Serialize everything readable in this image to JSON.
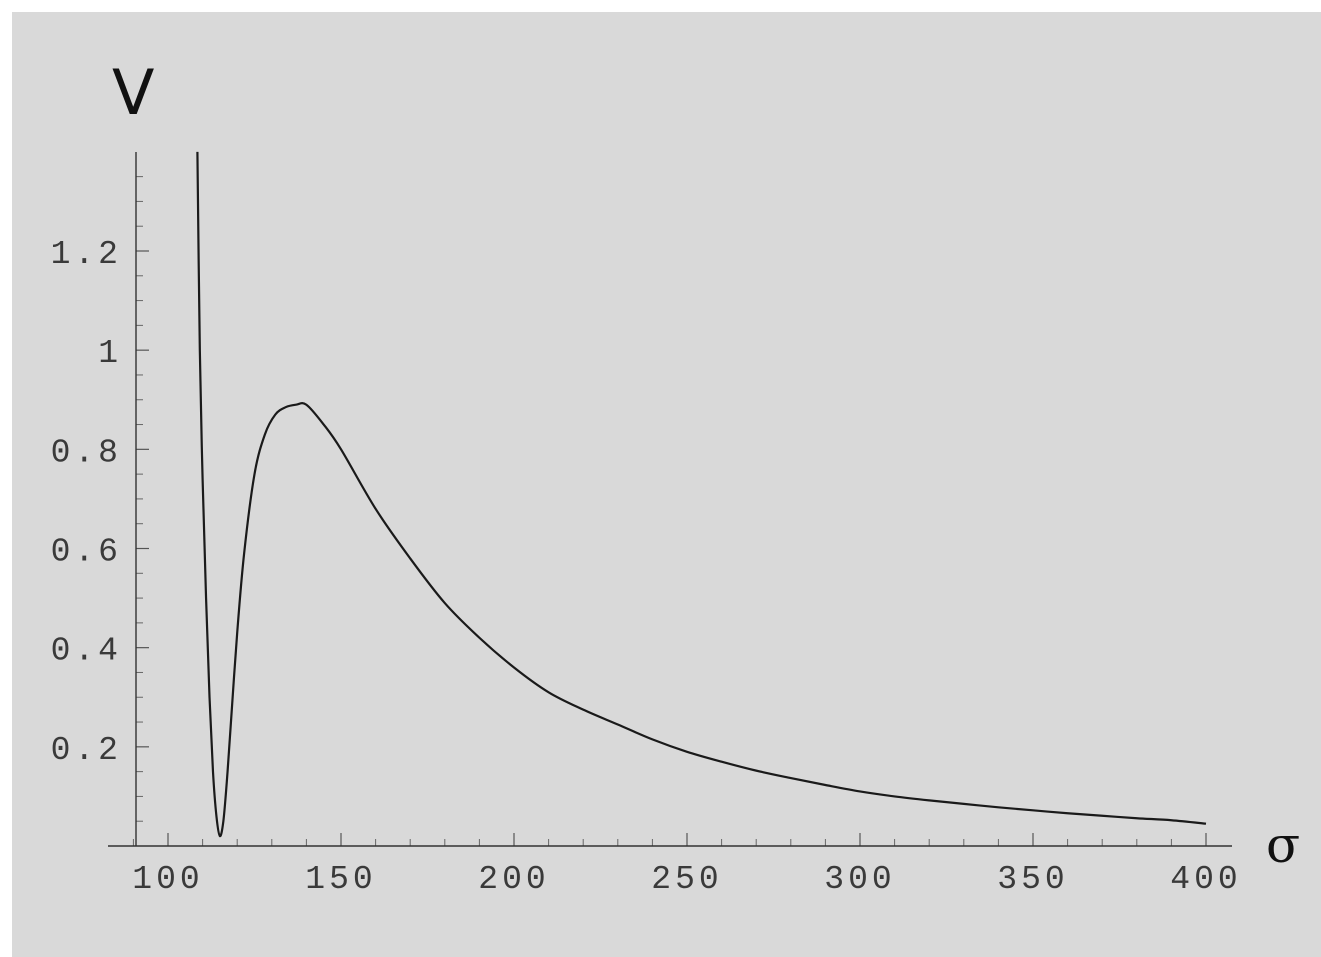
{
  "chart_data": {
    "type": "line",
    "title": "",
    "xlabel": "σ",
    "ylabel": "V",
    "xlim": [
      90,
      405
    ],
    "ylim": [
      0,
      1.4
    ],
    "x_ticks": [
      100,
      150,
      200,
      250,
      300,
      350,
      400
    ],
    "x_tick_labels": [
      "100",
      "150",
      "200",
      "250",
      "300",
      "350",
      "400"
    ],
    "y_ticks": [
      0.2,
      0.4,
      0.6,
      0.8,
      1.0,
      1.2
    ],
    "y_tick_labels": [
      "0.2",
      "0.4",
      "0.6",
      "0.8",
      "1",
      "1.2"
    ],
    "grid": false,
    "legend": "none",
    "colors": {
      "background": "#d9d9d9",
      "curve": "#1a1a1a",
      "axes": "#333333"
    },
    "series": [
      {
        "x": [
          108.5,
          109.2,
          110,
          111,
          112,
          113,
          114,
          115,
          116,
          117,
          118,
          120,
          122,
          125,
          128,
          131,
          134,
          137,
          140,
          145,
          150,
          160,
          170,
          180,
          190,
          200,
          210,
          220,
          230,
          240,
          250,
          260,
          270,
          280,
          290,
          300,
          310,
          320,
          330,
          340,
          350,
          360,
          370,
          380,
          390,
          400
        ],
        "y": [
          1.4,
          1.0,
          0.74,
          0.5,
          0.3,
          0.15,
          0.06,
          0.02,
          0.05,
          0.13,
          0.23,
          0.43,
          0.59,
          0.75,
          0.83,
          0.87,
          0.885,
          0.89,
          0.89,
          0.85,
          0.8,
          0.68,
          0.58,
          0.49,
          0.42,
          0.36,
          0.31,
          0.275,
          0.245,
          0.215,
          0.19,
          0.17,
          0.152,
          0.137,
          0.123,
          0.11,
          0.1,
          0.092,
          0.085,
          0.078,
          0.072,
          0.066,
          0.061,
          0.056,
          0.052,
          0.045
        ]
      }
    ]
  }
}
